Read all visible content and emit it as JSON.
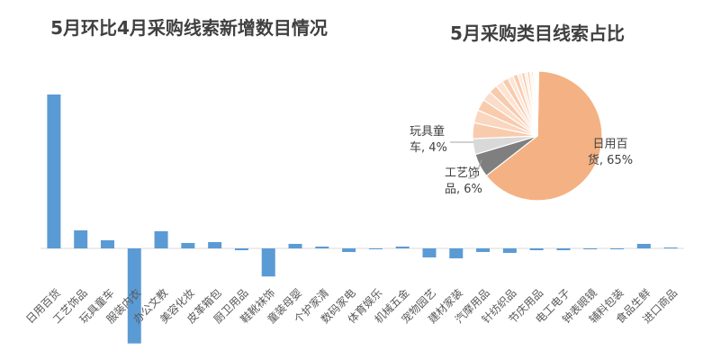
{
  "chart_data": [
    {
      "type": "bar",
      "title": "5月环比4月采购线索新增数目情况",
      "xlabel": "",
      "ylabel": "",
      "categories": [
        "日用百货",
        "工艺饰品",
        "玩具童车",
        "服装内衣",
        "办公文教",
        "美容化妆",
        "皮革箱包",
        "厨卫用品",
        "鞋靴袜饰",
        "童装母婴",
        "个护家清",
        "数码家电",
        "体育娱乐",
        "机械五金",
        "宠物园艺",
        "建材家装",
        "汽摩用品",
        "针纺织品",
        "节庆用品",
        "电工电子",
        "钟表眼镜",
        "辅料包装",
        "食品生鲜",
        "进口商品"
      ],
      "values": [
        170,
        20,
        9,
        -105,
        19,
        6,
        7,
        -2,
        -31,
        5,
        2,
        -4,
        -1,
        2,
        -10,
        -11,
        -4,
        -5,
        -2,
        -2,
        -1,
        -1,
        5,
        1
      ],
      "color": "#5b9bd5",
      "grid": false,
      "legend": "none"
    },
    {
      "type": "pie",
      "title": "5月采购类目线索占比",
      "slices": [
        {
          "label": "日用百货",
          "value": 65,
          "color": "#f4b183",
          "display": "65%"
        },
        {
          "label": "工艺饰品",
          "value": 6,
          "color": "#7f7f7f",
          "display": "6%"
        },
        {
          "label": "玩具童车",
          "value": 4,
          "color": "#d9d9d9",
          "display": "4%"
        },
        {
          "label": "",
          "value": 4.0,
          "color": "#f8cbad"
        },
        {
          "label": "",
          "value": 3.3,
          "color": "#fad6bf"
        },
        {
          "label": "",
          "value": 2.9,
          "color": "#f8cbad"
        },
        {
          "label": "",
          "value": 2.5,
          "color": "#fbdcc8"
        },
        {
          "label": "",
          "value": 2.2,
          "color": "#f8cbad"
        },
        {
          "label": "",
          "value": 1.9,
          "color": "#fde3d2"
        },
        {
          "label": "",
          "value": 1.6,
          "color": "#f8cbad"
        },
        {
          "label": "",
          "value": 1.4,
          "color": "#fce4d6"
        },
        {
          "label": "",
          "value": 1.2,
          "color": "#f8cbad"
        },
        {
          "label": "",
          "value": 1.0,
          "color": "#fde9dd"
        },
        {
          "label": "",
          "value": 0.8,
          "color": "#f8cbad"
        },
        {
          "label": "",
          "value": 0.7,
          "color": "#fdeee4"
        },
        {
          "label": "",
          "value": 0.6,
          "color": "#f8cbad"
        },
        {
          "label": "",
          "value": 0.5,
          "color": "#fef2ea"
        },
        {
          "label": "",
          "value": 0.4,
          "color": "#f8cbad"
        },
        {
          "label": "",
          "value": 0.35,
          "color": "#fef5ef"
        },
        {
          "label": "",
          "value": 0.3,
          "color": "#f8cbad"
        },
        {
          "label": "",
          "value": 0.25,
          "color": "#fff8f3"
        },
        {
          "label": "",
          "value": 0.2,
          "color": "#f8cbad"
        },
        {
          "label": "",
          "value": 0.15,
          "color": "#fffaf7"
        },
        {
          "label": "",
          "value": 0.1,
          "color": "#f8cbad"
        }
      ],
      "data_labels": [
        {
          "name_lines": [
            "日用百"
          ],
          "tail": "货, ",
          "display": "65%"
        },
        {
          "name_lines": [
            "工艺饰"
          ],
          "tail": "品, ",
          "display": "6%"
        },
        {
          "name_lines": [
            "玩具童"
          ],
          "tail": "车, ",
          "display": "4%"
        }
      ],
      "legend": "none"
    }
  ]
}
